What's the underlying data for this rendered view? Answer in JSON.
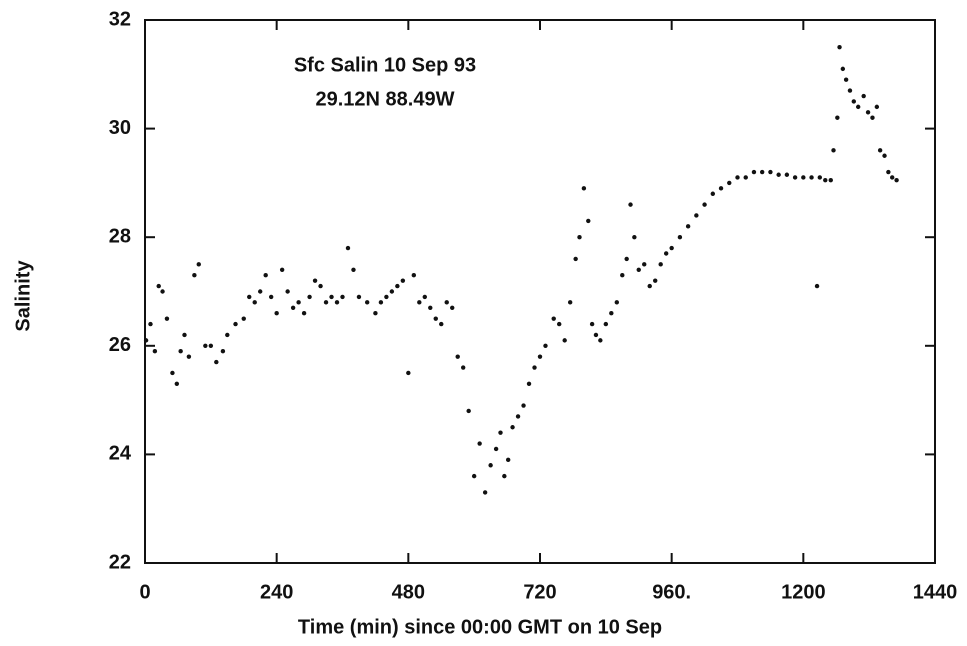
{
  "chart_data": {
    "type": "scatter",
    "title": "Sfc Salin 10 Sep 93",
    "subtitle": "29.12N 88.49W",
    "x_label": "Time (min) since 00:00 GMT on 10 Sep",
    "y_label": "Salinity",
    "xlim": [
      0,
      1440
    ],
    "xticks": [
      0,
      240,
      480,
      720,
      {
        "value": 960,
        "label": "960."
      },
      1200,
      1440
    ],
    "ylim": [
      22,
      32
    ],
    "yticks": [
      22,
      24,
      26,
      28,
      30,
      32
    ],
    "grid": false,
    "series": [
      {
        "name": "Salinity",
        "color": "#111111",
        "x": [
          2,
          10,
          18,
          25,
          32,
          40,
          50,
          58,
          65,
          72,
          80,
          90,
          98,
          110,
          120,
          130,
          142,
          150,
          165,
          180,
          190,
          200,
          210,
          220,
          230,
          240,
          250,
          260,
          270,
          280,
          290,
          300,
          310,
          320,
          330,
          340,
          350,
          360,
          370,
          380,
          390,
          405,
          420,
          430,
          440,
          450,
          460,
          470,
          480,
          490,
          500,
          510,
          520,
          530,
          540,
          550,
          560,
          570,
          580,
          590,
          600,
          610,
          620,
          630,
          640,
          648,
          655,
          662,
          670,
          680,
          690,
          700,
          710,
          720,
          730,
          745,
          755,
          765,
          775,
          785,
          792,
          800,
          808,
          815,
          822,
          830,
          840,
          850,
          860,
          870,
          878,
          885,
          892,
          900,
          910,
          920,
          930,
          940,
          950,
          960,
          975,
          990,
          1005,
          1020,
          1035,
          1050,
          1065,
          1080,
          1095,
          1110,
          1125,
          1140,
          1155,
          1170,
          1185,
          1200,
          1215,
          1225,
          1230,
          1240,
          1250,
          1255,
          1262,
          1266,
          1272,
          1278,
          1285,
          1292,
          1300,
          1310,
          1318,
          1326,
          1334,
          1340,
          1348,
          1355,
          1362,
          1370
        ],
        "values": [
          26.1,
          26.4,
          25.9,
          27.1,
          27.0,
          26.5,
          25.5,
          25.3,
          25.9,
          26.2,
          25.8,
          27.3,
          27.5,
          26.0,
          26.0,
          25.7,
          25.9,
          26.2,
          26.4,
          26.5,
          26.9,
          26.8,
          27.0,
          27.3,
          26.9,
          26.6,
          27.4,
          27.0,
          26.7,
          26.8,
          26.6,
          26.9,
          27.2,
          27.1,
          26.8,
          26.9,
          26.8,
          26.9,
          27.8,
          27.4,
          26.9,
          26.8,
          26.6,
          26.8,
          26.9,
          27.0,
          27.1,
          27.2,
          25.5,
          27.3,
          26.8,
          26.9,
          26.7,
          26.5,
          26.4,
          26.8,
          26.7,
          25.8,
          25.6,
          24.8,
          23.6,
          24.2,
          23.3,
          23.8,
          24.1,
          24.4,
          23.6,
          23.9,
          24.5,
          24.7,
          24.9,
          25.3,
          25.6,
          25.8,
          26.0,
          26.5,
          26.4,
          26.1,
          26.8,
          27.6,
          28.0,
          28.9,
          28.3,
          26.4,
          26.2,
          26.1,
          26.4,
          26.6,
          26.8,
          27.3,
          27.6,
          28.6,
          28.0,
          27.4,
          27.5,
          27.1,
          27.2,
          27.5,
          27.7,
          27.8,
          28.0,
          28.2,
          28.4,
          28.6,
          28.8,
          28.9,
          29.0,
          29.1,
          29.1,
          29.2,
          29.2,
          29.2,
          29.15,
          29.15,
          29.1,
          29.1,
          29.1,
          27.1,
          29.1,
          29.05,
          29.05,
          29.6,
          30.2,
          31.5,
          31.1,
          30.9,
          30.7,
          30.5,
          30.4,
          30.6,
          30.3,
          30.2,
          30.4,
          29.6,
          29.5,
          29.2,
          29.1,
          29.05
        ]
      }
    ]
  }
}
